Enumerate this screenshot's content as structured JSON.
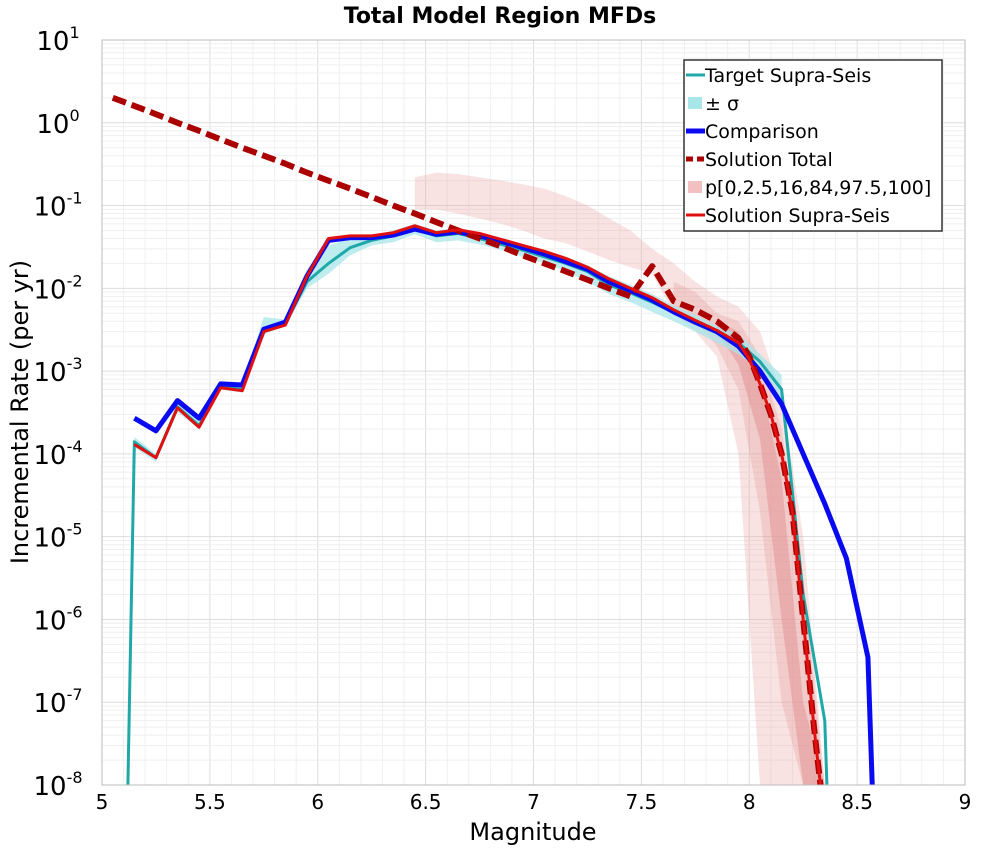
{
  "chart_data": {
    "type": "line",
    "title": "Total Model Region MFDs",
    "xlabel": "Magnitude",
    "ylabel": "Incremental Rate (per yr)",
    "xlim": [
      5,
      9
    ],
    "ylim_log10": [
      -8,
      1
    ],
    "log_y": true,
    "grid": true,
    "legend_position": "top-right",
    "x_ticks": [
      "5",
      "5.5",
      "6",
      "6.5",
      "7",
      "7.5",
      "8",
      "8.5",
      "9"
    ],
    "x_tick_values": [
      5,
      5.5,
      6,
      6.5,
      7,
      7.5,
      8,
      8.5,
      9
    ],
    "y_ticks": [
      {
        "base": "10",
        "exp": "1",
        "value": 1
      },
      {
        "base": "10",
        "exp": "0",
        "value": 0
      },
      {
        "base": "10",
        "exp": "-1",
        "value": -1
      },
      {
        "base": "10",
        "exp": "-2",
        "value": -2
      },
      {
        "base": "10",
        "exp": "-3",
        "value": -3
      },
      {
        "base": "10",
        "exp": "-4",
        "value": -4
      },
      {
        "base": "10",
        "exp": "-5",
        "value": -5
      },
      {
        "base": "10",
        "exp": "-6",
        "value": -6
      },
      {
        "base": "10",
        "exp": "-7",
        "value": -7
      },
      {
        "base": "10",
        "exp": "-8",
        "value": -8
      }
    ],
    "series": [
      {
        "name": "p[0,2.5,16,84,97.5,100]",
        "kind": "band",
        "color": "#e8a0a0",
        "opacity": 0.3,
        "x": [
          6.45,
          6.55,
          6.65,
          6.75,
          6.85,
          6.95,
          7.05,
          7.15,
          7.25,
          7.35,
          7.45,
          7.55,
          7.65,
          7.75,
          7.85,
          7.95,
          8.05,
          8.15,
          8.25,
          8.35
        ],
        "lower": [
          0.09,
          0.09,
          0.08,
          0.07,
          0.06,
          0.05,
          0.04,
          0.035,
          0.028,
          0.022,
          0.018,
          0.015,
          0.005,
          0.003,
          0.0015,
          0.0001,
          1e-08,
          1e-08,
          1e-08,
          1e-08
        ],
        "upper": [
          0.22,
          0.25,
          0.24,
          0.22,
          0.2,
          0.18,
          0.16,
          0.13,
          0.1,
          0.07,
          0.05,
          0.03,
          0.02,
          0.012,
          0.008,
          0.006,
          0.003,
          0.0005,
          1e-05,
          1e-08
        ]
      },
      {
        "name": "p[0,2.5,16,84,97.5,100]",
        "kind": "band",
        "color": "#e8a0a0",
        "opacity": 0.35,
        "x": [
          7.65,
          7.75,
          7.85,
          7.95,
          8.05,
          8.15,
          8.25,
          8.35
        ],
        "lower": [
          0.006,
          0.004,
          0.002,
          0.0006,
          2e-05,
          1e-07,
          1e-08,
          1e-08
        ],
        "upper": [
          0.012,
          0.009,
          0.005,
          0.004,
          0.0015,
          0.0002,
          3e-06,
          1e-08
        ]
      },
      {
        "name": "p[0,2.5,16,84,97.5,100]",
        "kind": "band",
        "color": "#e08a8a",
        "opacity": 0.45,
        "x": [
          7.85,
          7.95,
          8.05,
          8.15,
          8.25,
          8.35
        ],
        "lower": [
          0.003,
          0.0012,
          0.00015,
          1e-06,
          1e-08,
          1e-08
        ],
        "upper": [
          0.004,
          0.003,
          0.0008,
          5e-05,
          1e-07,
          1e-08
        ]
      },
      {
        "name": "± σ",
        "kind": "band",
        "color": "#a8e6ea",
        "opacity": 0.75,
        "x": [
          5.15,
          5.25,
          5.35,
          5.45,
          5.55,
          5.65,
          5.75,
          5.85,
          5.95,
          6.05,
          6.15,
          6.25,
          6.35,
          6.45,
          6.55,
          6.65,
          6.75,
          6.85,
          6.95,
          7.05,
          7.15,
          7.25,
          7.35,
          7.45,
          7.55,
          7.65,
          7.75,
          7.85,
          7.95,
          8.05,
          8.15
        ],
        "lower": [
          0.00012,
          8e-05,
          0.00032,
          0.0002,
          0.0006,
          0.00055,
          0.0028,
          0.0035,
          0.01,
          0.015,
          0.025,
          0.033,
          0.036,
          0.045,
          0.036,
          0.038,
          0.034,
          0.029,
          0.024,
          0.02,
          0.016,
          0.012,
          0.0085,
          0.0068,
          0.0052,
          0.004,
          0.003,
          0.0022,
          0.0016,
          0.001,
          0.0004
        ],
        "upper": [
          0.00016,
          0.0001,
          0.00042,
          0.00026,
          0.00075,
          0.0007,
          0.0045,
          0.0042,
          0.017,
          0.033,
          0.04,
          0.043,
          0.05,
          0.06,
          0.05,
          0.053,
          0.047,
          0.04,
          0.034,
          0.029,
          0.024,
          0.019,
          0.014,
          0.011,
          0.0085,
          0.0062,
          0.0048,
          0.0035,
          0.0028,
          0.0016,
          0.0009
        ]
      },
      {
        "name": "Target Supra-Seis",
        "kind": "line",
        "color": "#20a8a8",
        "width": 3,
        "x": [
          5.12,
          5.15,
          5.25,
          5.35,
          5.45,
          5.55,
          5.65,
          5.75,
          5.85,
          5.95,
          6.05,
          6.15,
          6.25,
          6.35,
          6.45,
          6.55,
          6.65,
          6.75,
          6.85,
          6.95,
          7.05,
          7.15,
          7.25,
          7.35,
          7.45,
          7.55,
          7.65,
          7.75,
          7.85,
          7.95,
          8.05,
          8.15,
          8.25,
          8.35,
          8.36
        ],
        "y": [
          1e-08,
          0.00014,
          9e-05,
          0.00037,
          0.00022,
          0.00065,
          0.0006,
          0.0031,
          0.0038,
          0.012,
          0.02,
          0.031,
          0.038,
          0.043,
          0.052,
          0.043,
          0.046,
          0.04,
          0.034,
          0.029,
          0.024,
          0.02,
          0.016,
          0.011,
          0.0088,
          0.0068,
          0.0051,
          0.0038,
          0.0029,
          0.0022,
          0.0013,
          0.0006,
          2e-06,
          6e-08,
          1e-08
        ]
      },
      {
        "name": "Comparison",
        "kind": "line",
        "color": "#0a0af0",
        "width": 5,
        "x": [
          5.15,
          5.25,
          5.35,
          5.45,
          5.55,
          5.65,
          5.75,
          5.85,
          5.95,
          6.05,
          6.15,
          6.25,
          6.35,
          6.45,
          6.55,
          6.65,
          6.75,
          6.85,
          6.95,
          7.05,
          7.15,
          7.25,
          7.35,
          7.45,
          7.55,
          7.65,
          7.75,
          7.85,
          7.95,
          8.05,
          8.15,
          8.25,
          8.35,
          8.45,
          8.55,
          8.57
        ],
        "y": [
          0.00027,
          0.00019,
          0.00044,
          0.00027,
          0.0007,
          0.00068,
          0.0032,
          0.0039,
          0.014,
          0.038,
          0.041,
          0.041,
          0.044,
          0.052,
          0.045,
          0.048,
          0.043,
          0.037,
          0.031,
          0.026,
          0.021,
          0.017,
          0.012,
          0.0094,
          0.0072,
          0.0052,
          0.0039,
          0.003,
          0.002,
          0.001,
          0.0004,
          0.0001,
          2.5e-05,
          5.5e-06,
          3.5e-07,
          1e-08
        ]
      },
      {
        "name": "Solution Total",
        "kind": "line",
        "dashed": true,
        "color": "#aa0000",
        "width": 6,
        "x": [
          5.05,
          5.15,
          5.25,
          5.35,
          5.45,
          5.55,
          5.65,
          5.75,
          5.85,
          5.95,
          6.05,
          6.15,
          6.25,
          6.35,
          6.45,
          6.55,
          6.65,
          6.75,
          6.85,
          6.95,
          7.05,
          7.15,
          7.25,
          7.35,
          7.45,
          7.55,
          7.65,
          7.75,
          7.85,
          7.95,
          8.0,
          8.05,
          8.1,
          8.15,
          8.2,
          8.25,
          8.3,
          8.33
        ],
        "y": [
          2.0,
          1.6,
          1.27,
          1.0,
          0.8,
          0.63,
          0.5,
          0.4,
          0.32,
          0.25,
          0.2,
          0.16,
          0.127,
          0.1,
          0.08,
          0.063,
          0.05,
          0.04,
          0.032,
          0.025,
          0.02,
          0.016,
          0.0127,
          0.01,
          0.008,
          0.0185,
          0.007,
          0.0055,
          0.004,
          0.0025,
          0.0015,
          0.0007,
          0.0003,
          0.0001,
          2e-05,
          1e-06,
          5e-08,
          1e-08
        ]
      },
      {
        "name": "Solution Supra-Seis",
        "kind": "line",
        "color": "#e01010",
        "width": 3,
        "x": [
          5.15,
          5.25,
          5.35,
          5.45,
          5.55,
          5.65,
          5.75,
          5.85,
          5.95,
          6.05,
          6.15,
          6.25,
          6.35,
          6.45,
          6.55,
          6.65,
          6.75,
          6.85,
          6.95,
          7.05,
          7.15,
          7.25,
          7.35,
          7.45,
          7.55,
          7.65,
          7.75,
          7.85,
          7.95,
          8.0,
          8.05,
          8.1,
          8.15,
          8.2,
          8.25,
          8.3,
          8.33
        ],
        "y": [
          0.00013,
          9e-05,
          0.00036,
          0.00021,
          0.00063,
          0.00058,
          0.003,
          0.0036,
          0.014,
          0.04,
          0.043,
          0.043,
          0.047,
          0.057,
          0.047,
          0.051,
          0.046,
          0.039,
          0.033,
          0.028,
          0.023,
          0.018,
          0.013,
          0.01,
          0.0077,
          0.0055,
          0.0041,
          0.0031,
          0.0022,
          0.0014,
          0.0007,
          0.0003,
          0.0001,
          2e-05,
          1e-06,
          5e-08,
          1e-08
        ]
      }
    ],
    "legend": [
      {
        "label": "Target Supra-Seis",
        "style": "line",
        "color": "#20a8a8"
      },
      {
        "label": "± σ",
        "style": "patch",
        "color": "#a8e6ea"
      },
      {
        "label": "Comparison",
        "style": "thick-line",
        "color": "#0a0af0"
      },
      {
        "label": "Solution Total",
        "style": "dashed-line",
        "color": "#aa0000"
      },
      {
        "label": "p[0,2.5,16,84,97.5,100]",
        "style": "patch",
        "color": "#f2c0c0"
      },
      {
        "label": "Solution Supra-Seis",
        "style": "line",
        "color": "#e01010"
      }
    ]
  }
}
